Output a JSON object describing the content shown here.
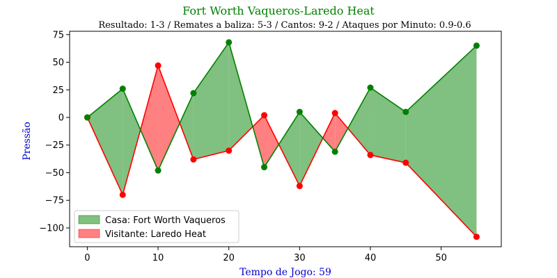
{
  "chart_data": {
    "type": "area",
    "title": "Fort Worth Vaqueros-Laredo Heat",
    "subtitle": "Resultado: 1-3 / Remates a baliza: 5-3 / Cantos: 9-2 / Ataques por Minuto: 0.9-0.6",
    "xlabel": "Tempo de Jogo: 59",
    "ylabel": "Pressão",
    "x": [
      0,
      5,
      10,
      15,
      20,
      25,
      30,
      35,
      40,
      45,
      55
    ],
    "series": [
      {
        "name": "Casa: Fort Worth Vaqueros",
        "values": [
          0,
          26,
          -48,
          22,
          68,
          -45,
          5,
          -31,
          27,
          5,
          65
        ]
      },
      {
        "name": "Visitante: Laredo Heat",
        "values": [
          0,
          -70,
          47,
          -38,
          -30,
          2,
          -62,
          4,
          -34,
          -41,
          -108
        ]
      }
    ],
    "xlim": [
      -2.5,
      58.5
    ],
    "ylim": [
      -117,
      78
    ],
    "xticks": [
      0,
      10,
      20,
      30,
      40,
      50
    ],
    "yticks": [
      -100,
      -75,
      -50,
      -25,
      0,
      25,
      50,
      75
    ],
    "grid": false,
    "legend_position": "lower-left",
    "colors": {
      "home_line": "#008000",
      "home_fill": "#80c080",
      "away_line": "#ff0000",
      "away_fill": "#ff8080",
      "title": "#008000",
      "axis_label": "#0000cd"
    }
  }
}
